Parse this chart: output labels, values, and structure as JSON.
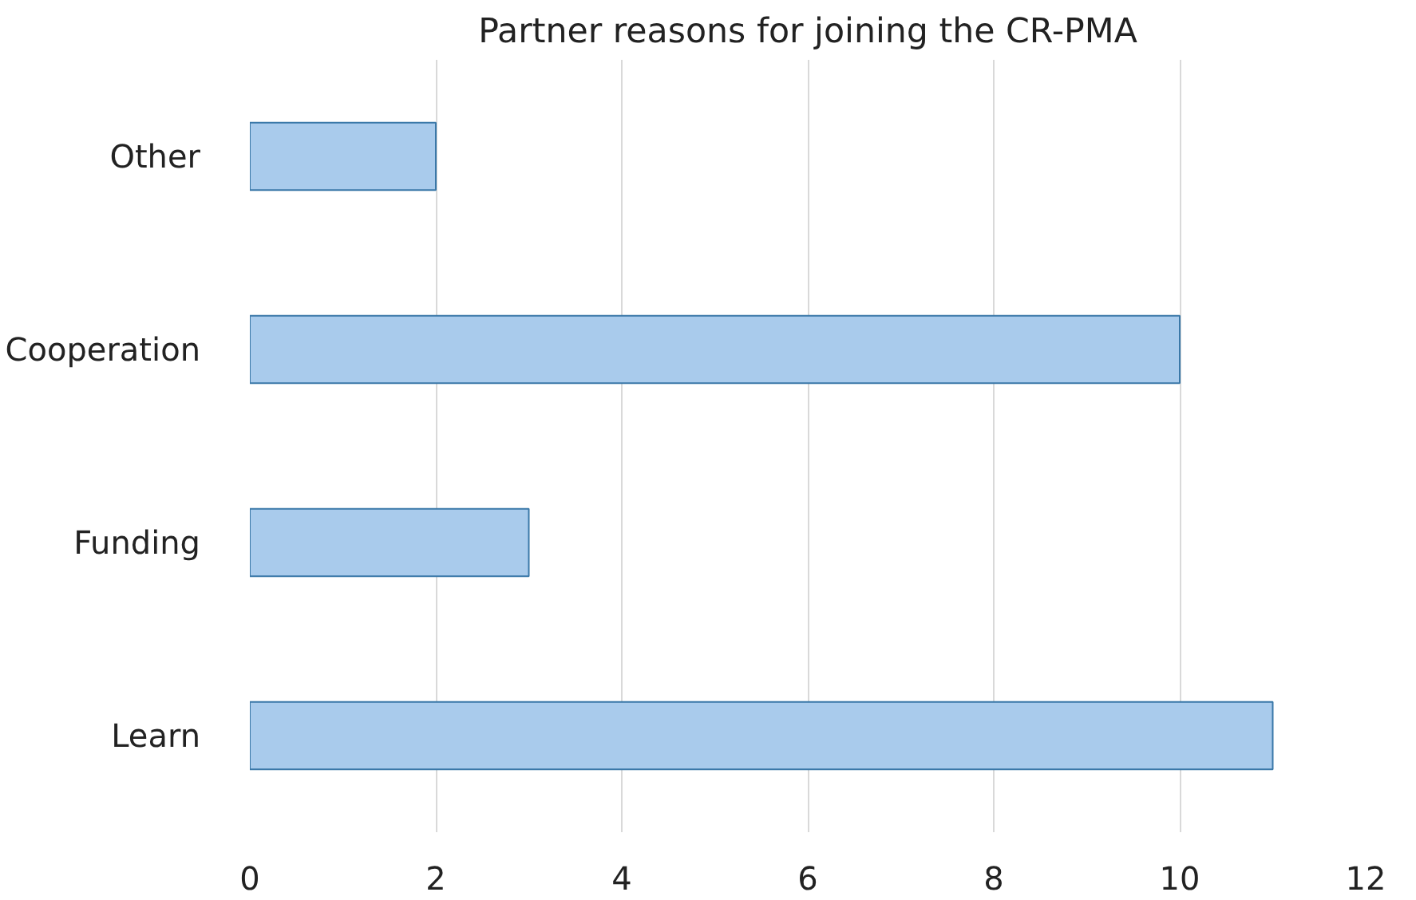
{
  "chart_data": {
    "type": "bar",
    "orientation": "horizontal",
    "title": "Partner reasons for joining the CR-PMA",
    "categories": [
      "Other",
      "Cooperation",
      "Funding",
      "Learn"
    ],
    "values": [
      2,
      10,
      3,
      11
    ],
    "color": "#a9cbec",
    "xlim": [
      0,
      12
    ],
    "xticks": [
      0,
      2,
      4,
      6,
      8,
      10,
      12
    ],
    "grid": "x"
  }
}
